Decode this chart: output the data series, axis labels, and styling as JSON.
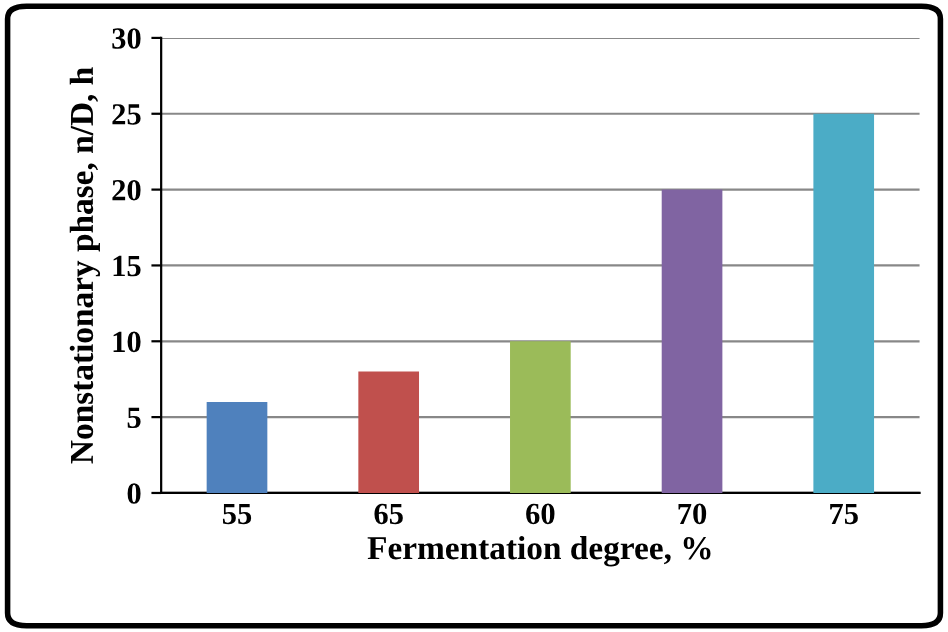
{
  "chart_data": {
    "type": "bar",
    "xlabel": "Fermentation degree, %",
    "ylabel": "Nonstationary phase, n/D, h",
    "categories": [
      "55",
      "65",
      "60",
      "70",
      "75"
    ],
    "values": [
      6,
      8,
      10,
      20,
      25
    ],
    "colors": [
      "#4f81bd",
      "#c0504d",
      "#9bbb59",
      "#8064a2",
      "#4bacc6"
    ],
    "ylim": [
      0,
      30
    ],
    "yticks": [
      0,
      5,
      10,
      15,
      20,
      25,
      30
    ],
    "grid": "y",
    "legend": false
  }
}
